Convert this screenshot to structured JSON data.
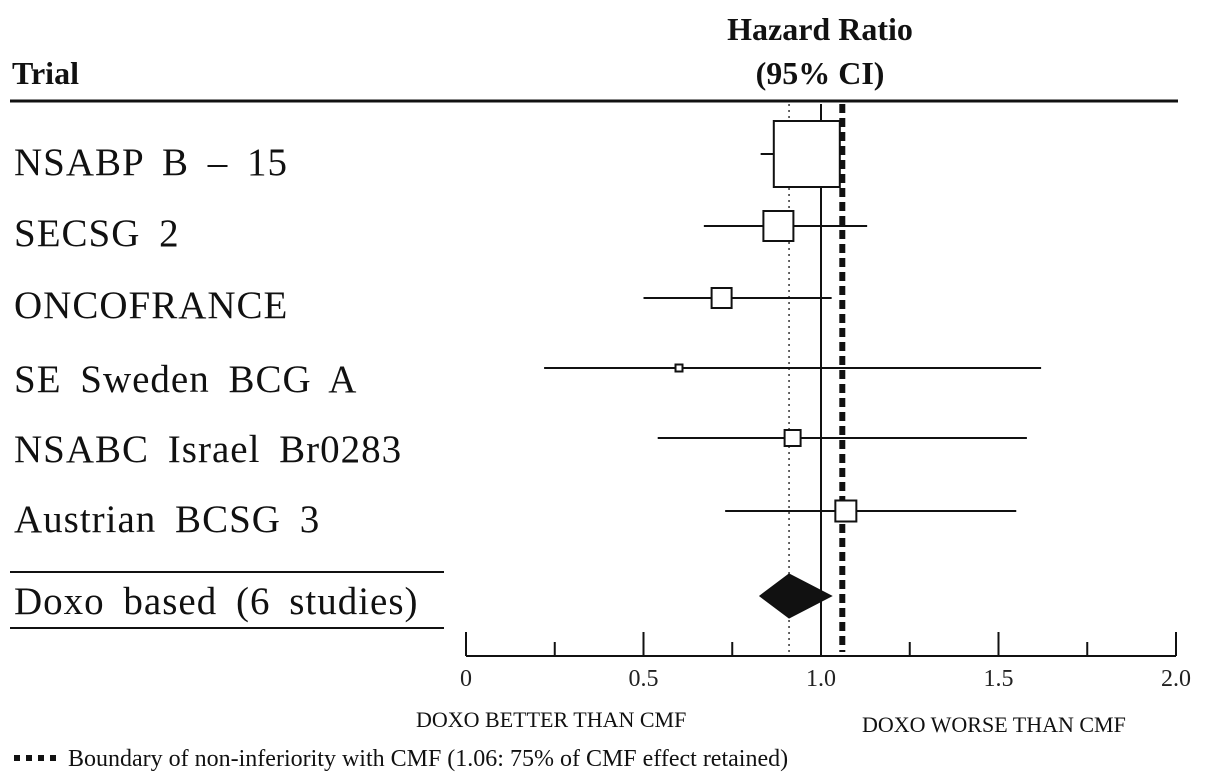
{
  "chart_data": {
    "type": "forest",
    "header_trial": "Trial",
    "header_measure_line1": "Hazard Ratio",
    "header_measure_line2": "(95% CI)",
    "studies": [
      {
        "name": "NSABP B – 15",
        "hr": 0.96,
        "lo": 0.83,
        "hi": 1.05
      },
      {
        "name": "SECSG 2",
        "hr": 0.88,
        "lo": 0.67,
        "hi": 1.13
      },
      {
        "name": "ONCOFRANCE",
        "hr": 0.72,
        "lo": 0.5,
        "hi": 1.03
      },
      {
        "name": "SE Sweden BCG A",
        "hr": 0.6,
        "lo": 0.22,
        "hi": 1.62
      },
      {
        "name": "NSABC Israel Br0283",
        "hr": 0.92,
        "lo": 0.54,
        "hi": 1.58
      },
      {
        "name": "Austrian BCSG 3",
        "hr": 1.07,
        "lo": 0.73,
        "hi": 1.55
      }
    ],
    "pooled": {
      "name": "Doxo based (6 studies)",
      "hr": 0.91,
      "lo": 0.85,
      "hi": 1.03
    },
    "xticks": [
      "0",
      "0.5",
      "1.0",
      "1.5",
      "2.0"
    ],
    "xlim": [
      0,
      2
    ],
    "reference_line": 1.0,
    "pooled_estimate_line": 0.91,
    "noninferiority_boundary": 1.06,
    "left_caption": "DOXO BETTER THAN CMF",
    "right_caption": "DOXO WORSE THAN CMF",
    "footnote": "Boundary of non-inferiority with CMF (1.06: 75% of CMF effect retained)"
  }
}
